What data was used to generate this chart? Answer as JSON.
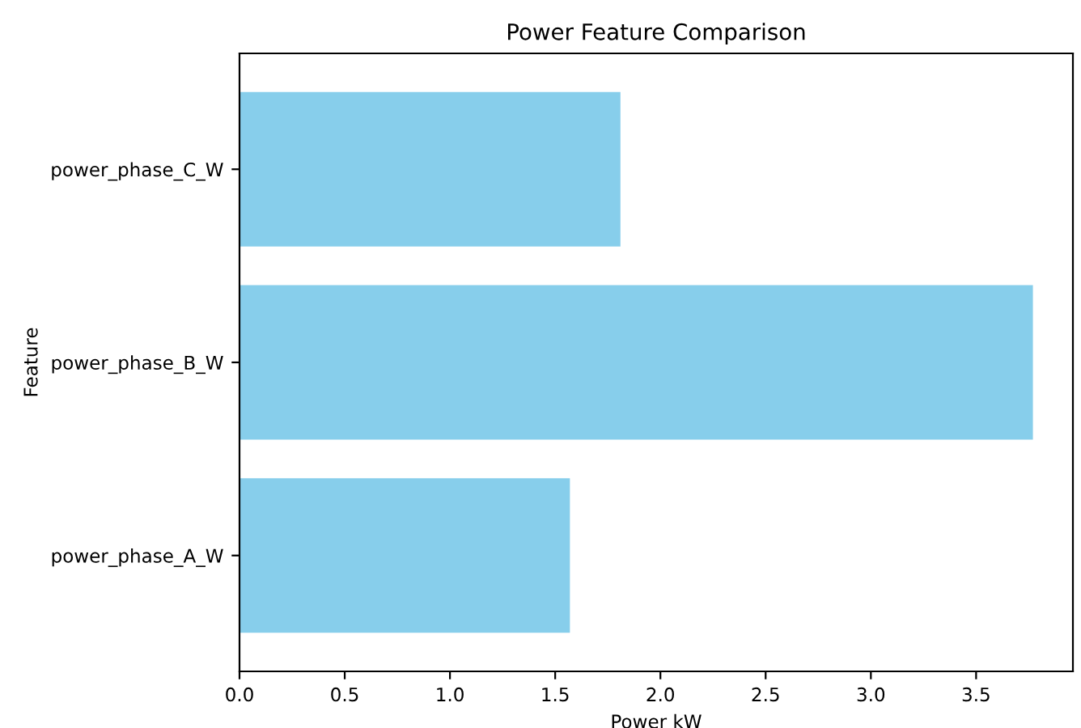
{
  "chart_data": {
    "type": "bar",
    "orientation": "horizontal",
    "title": "Power Feature Comparison",
    "xlabel": "Power kW",
    "ylabel": "Feature",
    "categories": [
      "power_phase_C_W",
      "power_phase_B_W",
      "power_phase_A_W"
    ],
    "values": [
      1.81,
      3.77,
      1.57
    ],
    "color": "#87ceeb",
    "xlim": [
      0,
      3.96
    ],
    "xticks": [
      {
        "value": 0,
        "label": "0.0"
      },
      {
        "value": 0.5,
        "label": "0.5"
      },
      {
        "value": 1,
        "label": "1.0"
      },
      {
        "value": 1.5,
        "label": "1.5"
      },
      {
        "value": 2,
        "label": "2.0"
      },
      {
        "value": 2.5,
        "label": "2.5"
      },
      {
        "value": 3,
        "label": "3.0"
      },
      {
        "value": 3.5,
        "label": "3.5"
      }
    ],
    "grid": false,
    "legend": false
  }
}
